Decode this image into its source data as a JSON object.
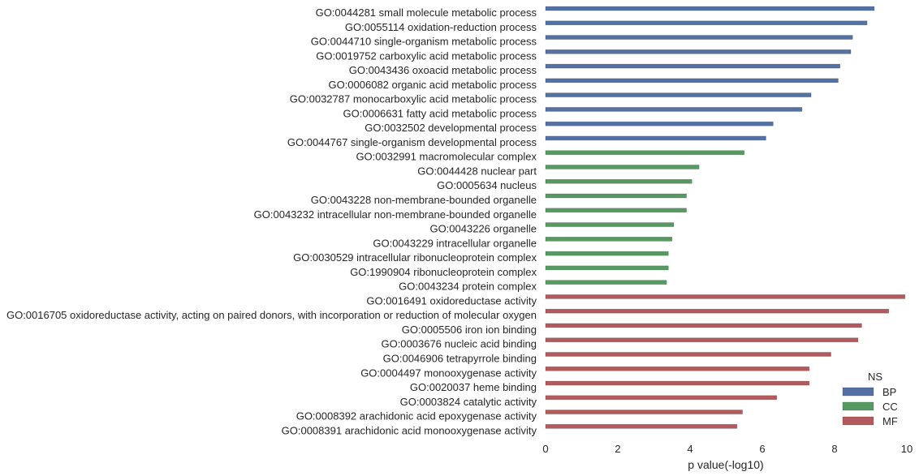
{
  "chart_data": {
    "type": "bar",
    "orientation": "horizontal",
    "xlabel": "p value(-log10)",
    "xlim": [
      0,
      10
    ],
    "xticks": [
      "0",
      "2",
      "4",
      "6",
      "8",
      "10"
    ],
    "grid": false,
    "legend": {
      "title": "NS",
      "placement": "lower-right",
      "entries": [
        "BP",
        "CC",
        "MF"
      ]
    },
    "colors": {
      "BP": "#5471a4",
      "CC": "#569a62",
      "MF": "#b25a5d"
    },
    "categories": [
      {
        "label": "GO:0044281 small molecule metabolic process",
        "value": 9.1,
        "ns": "BP"
      },
      {
        "label": "GO:0055114 oxidation-reduction process",
        "value": 8.9,
        "ns": "BP"
      },
      {
        "label": "GO:0044710 single-organism metabolic process",
        "value": 8.5,
        "ns": "BP"
      },
      {
        "label": "GO:0019752 carboxylic acid metabolic process",
        "value": 8.45,
        "ns": "BP"
      },
      {
        "label": "GO:0043436 oxoacid metabolic process",
        "value": 8.15,
        "ns": "BP"
      },
      {
        "label": "GO:0006082 organic acid metabolic process",
        "value": 8.1,
        "ns": "BP"
      },
      {
        "label": "GO:0032787 monocarboxylic acid metabolic process",
        "value": 7.35,
        "ns": "BP"
      },
      {
        "label": "GO:0006631 fatty acid metabolic process",
        "value": 7.1,
        "ns": "BP"
      },
      {
        "label": "GO:0032502 developmental process",
        "value": 6.3,
        "ns": "BP"
      },
      {
        "label": "GO:0044767 single-organism developmental process",
        "value": 6.1,
        "ns": "BP"
      },
      {
        "label": "GO:0032991 macromolecular complex",
        "value": 5.5,
        "ns": "CC"
      },
      {
        "label": "GO:0044428 nuclear part",
        "value": 4.25,
        "ns": "CC"
      },
      {
        "label": "GO:0005634 nucleus",
        "value": 4.05,
        "ns": "CC"
      },
      {
        "label": "GO:0043228 non-membrane-bounded organelle",
        "value": 3.9,
        "ns": "CC"
      },
      {
        "label": "GO:0043232 intracellular non-membrane-bounded organelle",
        "value": 3.9,
        "ns": "CC"
      },
      {
        "label": "GO:0043226 organelle",
        "value": 3.55,
        "ns": "CC"
      },
      {
        "label": "GO:0043229 intracellular organelle",
        "value": 3.5,
        "ns": "CC"
      },
      {
        "label": "GO:0030529 intracellular ribonucleoprotein complex",
        "value": 3.4,
        "ns": "CC"
      },
      {
        "label": "GO:1990904 ribonucleoprotein complex",
        "value": 3.4,
        "ns": "CC"
      },
      {
        "label": "GO:0043234 protein complex",
        "value": 3.35,
        "ns": "CC"
      },
      {
        "label": "GO:0016491 oxidoreductase activity",
        "value": 9.95,
        "ns": "MF"
      },
      {
        "label": "GO:0016705 oxidoreductase activity, acting on paired donors, with incorporation or reduction of molecular oxygen",
        "value": 9.5,
        "ns": "MF"
      },
      {
        "label": "GO:0005506 iron ion binding",
        "value": 8.75,
        "ns": "MF"
      },
      {
        "label": "GO:0003676 nucleic acid binding",
        "value": 8.65,
        "ns": "MF"
      },
      {
        "label": "GO:0046906 tetrapyrrole binding",
        "value": 7.9,
        "ns": "MF"
      },
      {
        "label": "GO:0004497 monooxygenase activity",
        "value": 7.3,
        "ns": "MF"
      },
      {
        "label": "GO:0020037 heme binding",
        "value": 7.3,
        "ns": "MF"
      },
      {
        "label": "GO:0003824 catalytic activity",
        "value": 6.4,
        "ns": "MF"
      },
      {
        "label": "GO:0008392 arachidonic acid epoxygenase activity",
        "value": 5.45,
        "ns": "MF"
      },
      {
        "label": "GO:0008391 arachidonic acid monooxygenase activity",
        "value": 5.3,
        "ns": "MF"
      }
    ]
  }
}
